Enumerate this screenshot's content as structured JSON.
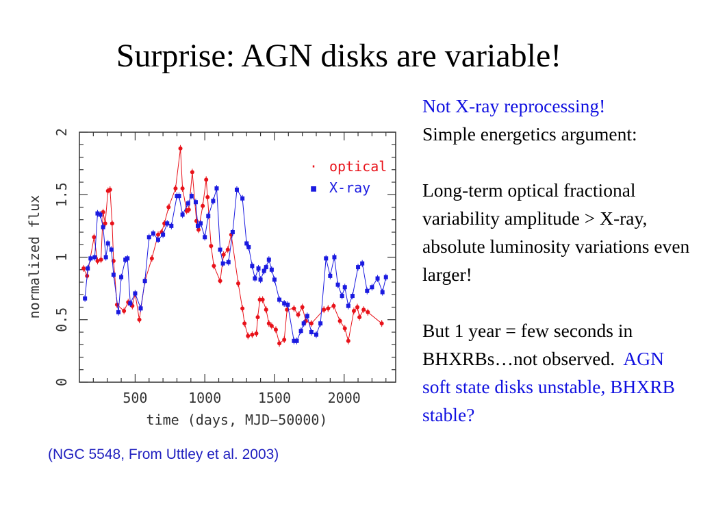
{
  "slide": {
    "title": "Surprise: AGN disks are variable!",
    "caption": "(NGC 5548, From Uttley et al. 2003)",
    "notes": {
      "line1": "Not X-ray reprocessing!",
      "line2": "Simple energetics argument:",
      "para2": "Long-term optical fractional variability amplitude > X-ray, absolute luminosity variations even larger!",
      "para3_black": "But 1 year = few seconds in BHXRBs…not observed.",
      "para3_blue": "AGN soft state disks unstable, BHXRB stable?"
    }
  },
  "colors": {
    "optical": "#e8121a",
    "xray": "#1a1ae0",
    "axis": "#333333",
    "caption": "#1f1fbf",
    "note_blue": "#1010e0"
  },
  "chart_data": {
    "type": "line",
    "xlabel": "time (days, MJD−50000)",
    "ylabel": "normalized flux",
    "xlim": [
      100,
      2370
    ],
    "ylim": [
      0,
      2
    ],
    "xticks": [
      500,
      1000,
      1500,
      2000
    ],
    "yticks": [
      0,
      0.5,
      1,
      1.5,
      2
    ],
    "ytick_labels": [
      "0",
      "0.5",
      "1",
      "1.5",
      "2"
    ],
    "legend_placement": "top-right",
    "series": [
      {
        "name": "optical",
        "marker": "·",
        "x": [
          130,
          155,
          205,
          230,
          255,
          270,
          285,
          305,
          320,
          335,
          345,
          370,
          420,
          450,
          480,
          500,
          530,
          570,
          620,
          665,
          690,
          710,
          740,
          790,
          825,
          840,
          870,
          885,
          910,
          940,
          955,
          985,
          1010,
          1020,
          1045,
          1065,
          1110,
          1135,
          1165,
          1190,
          1240,
          1270,
          1285,
          1310,
          1340,
          1370,
          1380,
          1395,
          1415,
          1440,
          1460,
          1480,
          1510,
          1535,
          1570,
          1590,
          1640,
          1670,
          1700,
          1725,
          1765,
          1855,
          1885,
          1925,
          1970,
          2005,
          2030,
          2070,
          2095,
          2110,
          2140,
          2170,
          2270
        ],
        "y": [
          0.91,
          0.85,
          1.16,
          0.97,
          0.98,
          1.36,
          1.27,
          1.53,
          1.54,
          1.27,
          0.97,
          0.62,
          0.57,
          0.64,
          0.61,
          0.71,
          0.5,
          0.81,
          0.99,
          1.18,
          1.2,
          1.27,
          1.4,
          1.55,
          1.87,
          1.55,
          1.37,
          1.38,
          1.68,
          1.29,
          1.22,
          1.41,
          1.62,
          1.48,
          1.09,
          0.93,
          0.81,
          1.02,
          1.06,
          1.18,
          0.79,
          0.59,
          0.47,
          0.37,
          0.38,
          0.39,
          0.52,
          0.66,
          0.66,
          0.58,
          0.47,
          0.45,
          0.42,
          0.31,
          0.34,
          0.58,
          0.59,
          0.54,
          0.6,
          0.49,
          0.47,
          0.58,
          0.59,
          0.61,
          0.49,
          0.43,
          0.33,
          0.57,
          0.6,
          0.52,
          0.58,
          0.56,
          0.47
        ]
      },
      {
        "name": "X-ray",
        "marker": "▪",
        "x": [
          140,
          160,
          180,
          210,
          230,
          250,
          270,
          290,
          305,
          330,
          345,
          380,
          400,
          430,
          445,
          465,
          500,
          540,
          570,
          600,
          630,
          665,
          700,
          730,
          760,
          800,
          815,
          840,
          880,
          905,
          935,
          950,
          970,
          1000,
          1025,
          1060,
          1085,
          1110,
          1130,
          1170,
          1200,
          1230,
          1270,
          1300,
          1315,
          1340,
          1360,
          1385,
          1400,
          1425,
          1440,
          1460,
          1480,
          1500,
          1535,
          1570,
          1595,
          1640,
          1660,
          1690,
          1710,
          1735,
          1765,
          1800,
          1830,
          1870,
          1900,
          1930,
          1955,
          1985,
          2005,
          2030,
          2060,
          2100,
          2130,
          2165,
          2200,
          2240,
          2275,
          2300
        ],
        "y": [
          0.67,
          0.91,
          0.99,
          1.0,
          1.35,
          1.34,
          1.24,
          1.0,
          1.11,
          1.06,
          0.86,
          0.56,
          0.84,
          0.98,
          0.99,
          0.63,
          0.71,
          0.59,
          0.81,
          1.16,
          1.19,
          1.14,
          1.18,
          1.27,
          1.25,
          1.49,
          1.49,
          1.34,
          1.43,
          1.49,
          1.44,
          1.25,
          1.27,
          1.16,
          1.33,
          1.45,
          1.55,
          1.06,
          0.95,
          0.96,
          1.2,
          1.54,
          1.47,
          1.11,
          1.08,
          0.93,
          0.83,
          0.91,
          0.82,
          0.89,
          0.92,
          0.98,
          0.9,
          0.82,
          0.66,
          0.63,
          0.62,
          0.33,
          0.33,
          0.41,
          0.47,
          0.53,
          0.4,
          0.38,
          0.47,
          0.99,
          0.85,
          1.0,
          0.78,
          0.69,
          0.76,
          0.61,
          0.69,
          0.92,
          0.95,
          0.73,
          0.76,
          0.83,
          0.72,
          0.84
        ]
      }
    ]
  }
}
